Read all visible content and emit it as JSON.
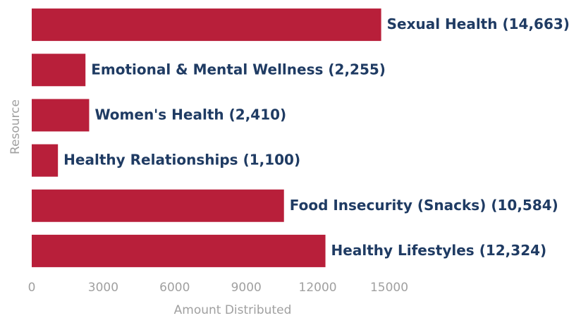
{
  "chart_data": {
    "type": "barh",
    "categories": [
      "Sexual Health",
      "Emotional & Mental Wellness",
      "Women's Health",
      "Healthy Relationships",
      "Food Insecurity (Snacks)",
      "Healthy Lifestyles"
    ],
    "values": [
      14663,
      2255,
      2410,
      1100,
      10584,
      12324
    ],
    "value_labels": [
      "(14,663)",
      "(2,255)",
      "(2,410)",
      "(1,100)",
      "(10,584)",
      "(12,324)"
    ],
    "color": "#b81f3a",
    "xlim": [
      0,
      15000
    ],
    "xticks": [
      0,
      3000,
      6000,
      9000,
      12000,
      15000
    ],
    "xlabel": "Amount Distributed",
    "ylabel": "Resource",
    "grid": false
  }
}
